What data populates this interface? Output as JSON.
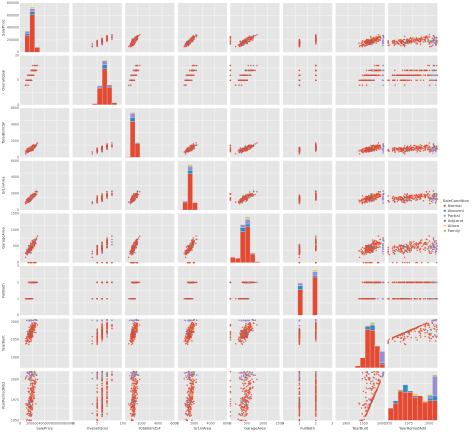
{
  "chart_data": {
    "type": "scatter",
    "kind": "pairplot",
    "style": "ggplot",
    "grid": true,
    "legend_placement": "right",
    "hue": "SaleCondition",
    "variables": [
      {
        "name": "SalePrice",
        "range": [
          0,
          800000
        ],
        "ticks": [
          "0",
          "200000",
          "400000",
          "600000",
          "800000"
        ]
      },
      {
        "name": "OverallQual",
        "range": [
          0,
          10
        ],
        "ticks": [
          "0",
          "5",
          "10"
        ]
      },
      {
        "name": "TotalBsmtSF",
        "range": [
          0,
          6000
        ],
        "ticks": [
          "0",
          "2000",
          "4000",
          "6000"
        ]
      },
      {
        "name": "GrLivArea",
        "range": [
          0,
          6000
        ],
        "ticks": [
          "0",
          "2000",
          "4000",
          "6000"
        ]
      },
      {
        "name": "GarageArea",
        "range": [
          0,
          1500
        ],
        "ticks": [
          "0",
          "500",
          "1000",
          "1500"
        ]
      },
      {
        "name": "FullBath",
        "range": [
          0,
          3
        ],
        "ticks": [
          "0",
          "1",
          "2",
          "3"
        ]
      },
      {
        "name": "YearBuilt",
        "range": [
          1870,
          2010
        ],
        "ticks": [
          "1900",
          "1950",
          "2000"
        ]
      },
      {
        "name": "YearRemodAdd",
        "range": [
          1950,
          2010
        ],
        "ticks": [
          "1950",
          "1975",
          "2000"
        ]
      }
    ],
    "series": [
      {
        "name": "Normal",
        "color": "#e24a33",
        "share": 0.82
      },
      {
        "name": "Abnorml",
        "color": "#348abd",
        "share": 0.07
      },
      {
        "name": "Partial",
        "color": "#988ed5",
        "share": 0.085
      },
      {
        "name": "AdjLand",
        "color": "#777777",
        "share": 0.005
      },
      {
        "name": "Alloca",
        "color": "#fbc15e",
        "share": 0.008
      },
      {
        "name": "Family",
        "color": "#8eba42",
        "share": 0.012
      }
    ],
    "legend_title": "SaleCondition"
  }
}
